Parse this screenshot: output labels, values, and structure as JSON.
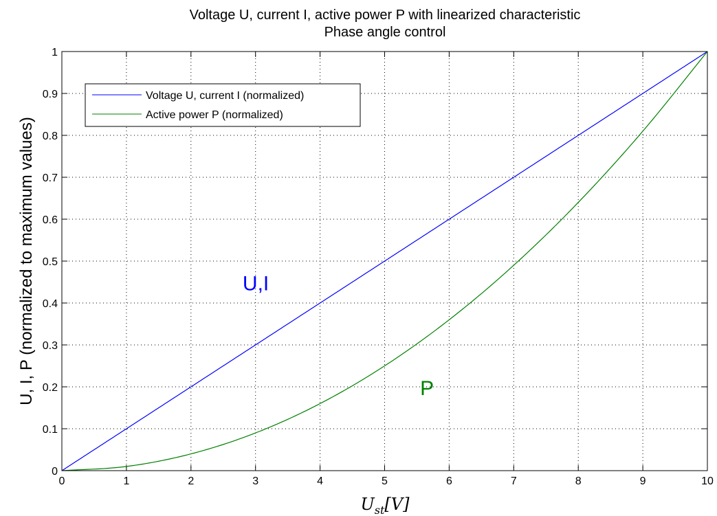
{
  "chart_data": {
    "type": "line",
    "title": "Voltage U, current I, active power P with linearized characteristic",
    "subtitle": "Phase angle control",
    "xlabel": {
      "main": "U",
      "sub": "st",
      "unit": "[V]"
    },
    "ylabel": "U, I, P (normalized to maximum values)",
    "xlim": [
      0,
      10
    ],
    "ylim": [
      0,
      1
    ],
    "xticks": [
      0,
      1,
      2,
      3,
      4,
      5,
      6,
      7,
      8,
      9,
      10
    ],
    "yticks": [
      0,
      0.1,
      0.2,
      0.3,
      0.4,
      0.5,
      0.6,
      0.7,
      0.8,
      0.9,
      1
    ],
    "ytick_labels": [
      "0",
      "0.1",
      "0.2",
      "0.3",
      "0.4",
      "0.5",
      "0.6",
      "0.7",
      "0.8",
      "0.9",
      "1"
    ],
    "grid": true,
    "legend_position": "top-left",
    "x": [
      0,
      1,
      2,
      3,
      4,
      5,
      6,
      7,
      8,
      9,
      10
    ],
    "series": [
      {
        "name": "Voltage U, current I (normalized)",
        "color": "#0000ff",
        "values": [
          0,
          0.1,
          0.2,
          0.3,
          0.4,
          0.5,
          0.6,
          0.7,
          0.8,
          0.9,
          1.0
        ]
      },
      {
        "name": "Active power P (normalized)",
        "color": "#008000",
        "values": [
          0,
          0.01,
          0.04,
          0.09,
          0.16,
          0.25,
          0.36,
          0.49,
          0.64,
          0.81,
          1.0
        ]
      }
    ],
    "annotations": [
      {
        "text": "U,I",
        "x": 2.8,
        "y": 0.45,
        "color": "#0000ff"
      },
      {
        "text": "P",
        "x": 5.55,
        "y": 0.2,
        "color": "#008000"
      }
    ]
  }
}
